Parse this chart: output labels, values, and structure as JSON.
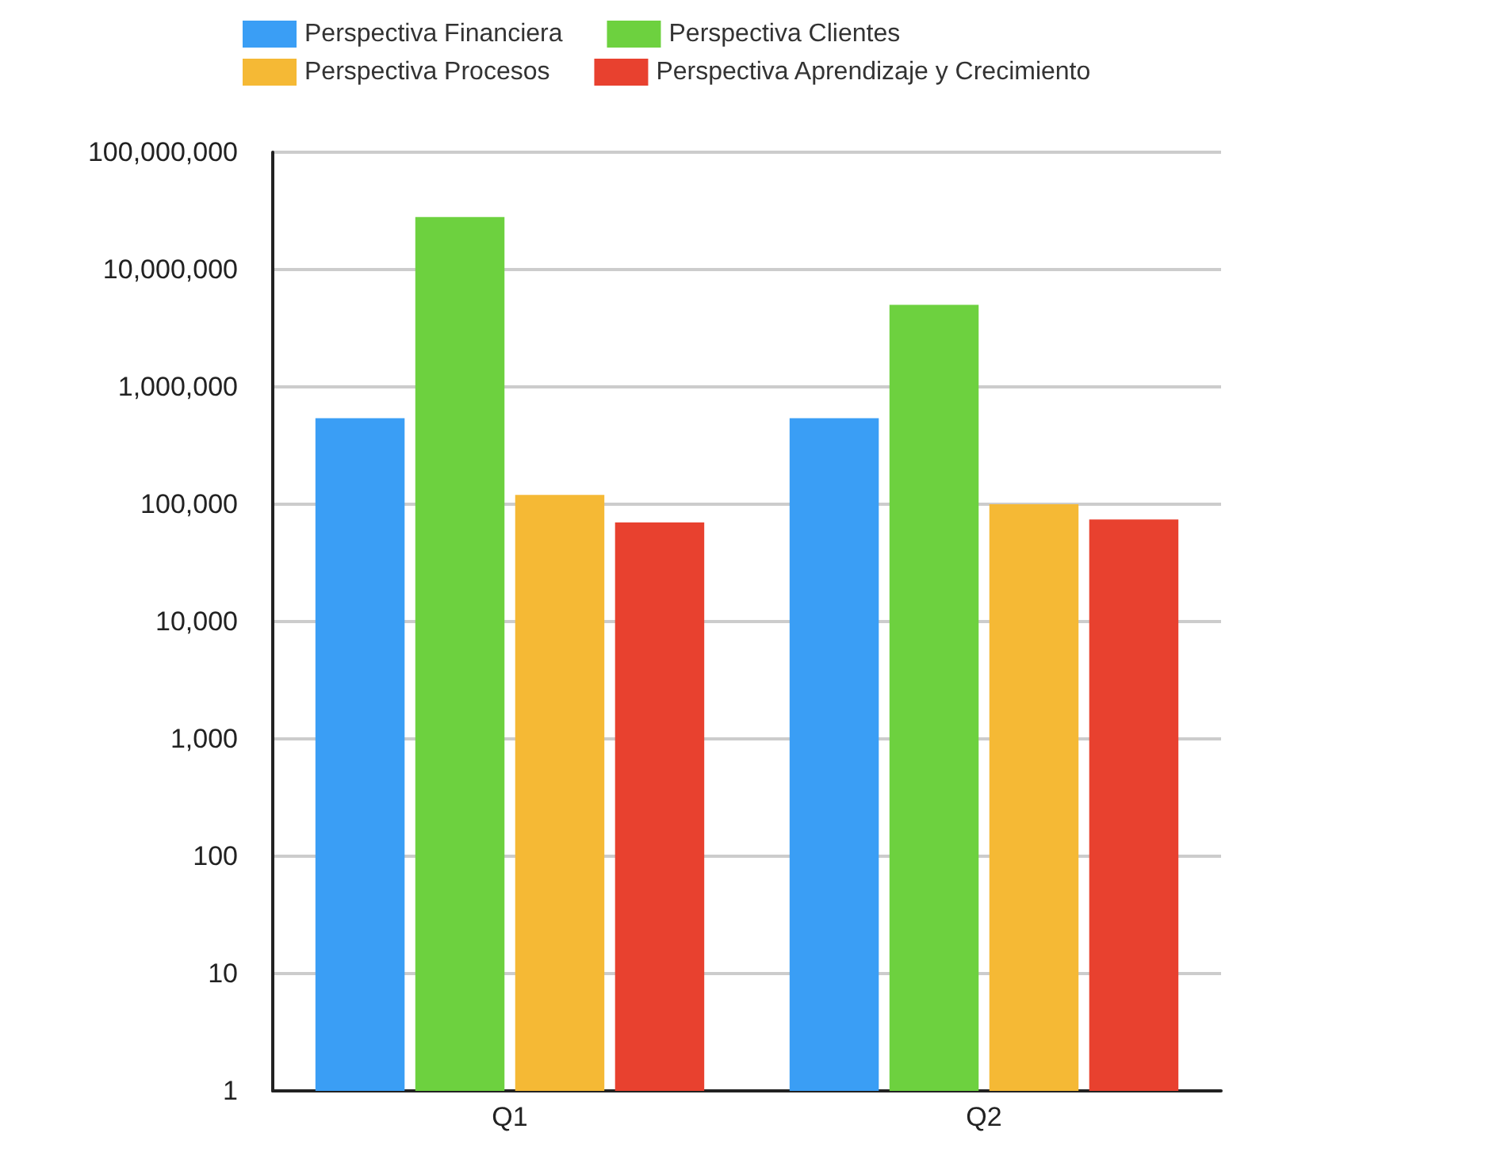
{
  "chart_data": {
    "type": "bar",
    "categories": [
      "Q1",
      "Q2"
    ],
    "series": [
      {
        "name": "Perspectiva Financiera",
        "color": "#3a9ef5",
        "values": [
          540000,
          540000
        ]
      },
      {
        "name": "Perspectiva Clientes",
        "color": "#6dd13f",
        "values": [
          28000000,
          5000000
        ]
      },
      {
        "name": "Perspectiva Procesos",
        "color": "#f5b935",
        "values": [
          120000,
          100000
        ]
      },
      {
        "name": "Perspectiva Aprendizaje y Crecimiento",
        "color": "#e8412f",
        "values": [
          70000,
          74000
        ]
      }
    ],
    "log": "y",
    "ylim": [
      1,
      100000000
    ],
    "yticks": [
      {
        "value": 1,
        "label": "1"
      },
      {
        "value": 10,
        "label": "10"
      },
      {
        "value": 100,
        "label": "100"
      },
      {
        "value": 1000,
        "label": "1,000"
      },
      {
        "value": 10000,
        "label": "10,000"
      },
      {
        "value": 100000,
        "label": "100,000"
      },
      {
        "value": 1000000,
        "label": "1,000,000"
      },
      {
        "value": 10000000,
        "label": "10,000,000"
      },
      {
        "value": 100000000,
        "label": "100,000,000"
      }
    ],
    "grid": "y",
    "legend": "top"
  }
}
